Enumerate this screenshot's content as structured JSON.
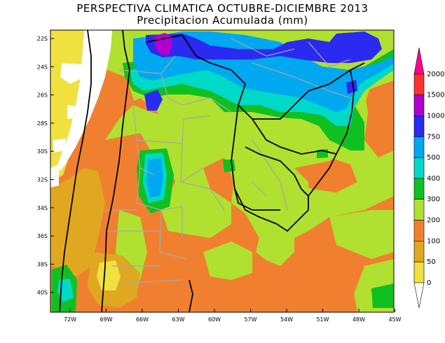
{
  "title": "PERSPECTIVA CLIMATICA OCTUBRE-DICIEMBRE 2013",
  "subtitle": "Precipitacion Acumulada (mm)",
  "lat_labels": [
    "22S",
    "24S",
    "26S",
    "28S",
    "30S",
    "32S",
    "34S",
    "36S",
    "38S",
    "40S"
  ],
  "lon_labels": [
    "72W",
    "69W",
    "66W",
    "63W",
    "60W",
    "57W",
    "54W",
    "51W",
    "48W",
    "45W"
  ],
  "colorbar": {
    "levels": [
      "2000",
      "1500",
      "1000",
      "750",
      "500",
      "400",
      "300",
      "200",
      "100",
      "50",
      "0"
    ],
    "colors": [
      "#ff0090",
      "#ff3030",
      "#b000d0",
      "#2a2af0",
      "#00a8f0",
      "#00d8c8",
      "#10c020",
      "#b0e030",
      "#f08030",
      "#e0a820",
      "#f0e040",
      "#ffffff"
    ]
  },
  "map_colors": {
    "water": "#b0e030",
    "orange": "#f08030",
    "gold": "#e0a820",
    "yellow": "#f0e040",
    "green": "#10c020",
    "cyan": "#00d8c8",
    "sky": "#00a8f0",
    "blue": "#2a2af0",
    "purple": "#b000d0",
    "white": "#ffffff",
    "border": "#000000",
    "province": "#a8a8a8"
  }
}
